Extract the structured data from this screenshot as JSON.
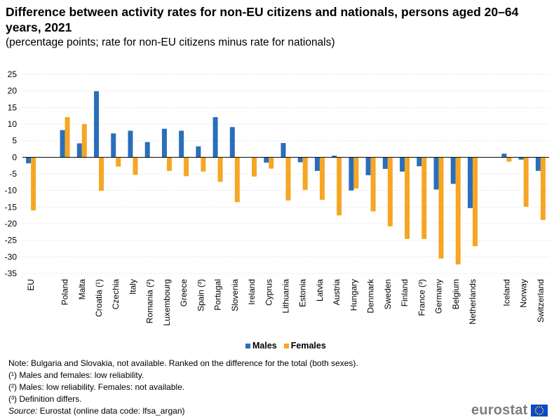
{
  "chart_data": {
    "type": "bar",
    "title": "Difference between activity rates for non-EU citizens and nationals, persons aged 20–64 years, 2021",
    "subtitle": "(percentage points; rate for non-EU citizens minus rate for nationals)",
    "categories": [
      "EU",
      "Poland",
      "Malta",
      "Croatia (¹)",
      "Czechia",
      "Italy",
      "Romania (²)",
      "Luxembourg",
      "Greece",
      "Spain (³)",
      "Portugal",
      "Slovenia",
      "Ireland",
      "Cyprus",
      "Lithuania",
      "Estonia",
      "Latvia",
      "Austria",
      "Hungary",
      "Denmark",
      "Sweden",
      "Finland",
      "France (³)",
      "Germany",
      "Belgium",
      "Netherlands",
      "Iceland",
      "Norway",
      "Switzerland"
    ],
    "series": [
      {
        "name": "Males",
        "color": "#2a6ebb",
        "values": [
          -1.8,
          8.2,
          4.2,
          19.9,
          7.2,
          8.0,
          4.6,
          8.6,
          8.0,
          3.3,
          12.1,
          9.1,
          null,
          -1.6,
          4.3,
          -1.5,
          -4.1,
          0.5,
          -10.0,
          -5.4,
          -3.5,
          -4.3,
          -2.7,
          -9.7,
          -8.0,
          -15.3,
          1.1,
          -0.7,
          -4.1
        ]
      },
      {
        "name": "Females",
        "color": "#f6a623",
        "values": [
          -16.0,
          12.1,
          10.0,
          -10.1,
          -2.8,
          -5.3,
          null,
          -4.1,
          -5.7,
          -4.3,
          -7.4,
          -13.5,
          -5.8,
          -3.4,
          -13.0,
          -9.8,
          -12.8,
          -17.5,
          -9.4,
          -16.3,
          -20.8,
          -24.6,
          -24.6,
          -30.5,
          -32.3,
          -26.8,
          -1.3,
          -14.9,
          -18.9
        ]
      }
    ],
    "ylim": [
      -35,
      25
    ],
    "yticks": [
      25,
      20,
      15,
      10,
      5,
      0,
      -5,
      -10,
      -15,
      -20,
      -25,
      -30,
      -35
    ],
    "grid": true,
    "legend_position": "bottom-center",
    "xlabel": "",
    "ylabel": ""
  },
  "legend": {
    "males": "Males",
    "females": "Females"
  },
  "notes": {
    "note": "Note: Bulgaria and Slovakia, not available. Ranked on the difference for the total (both sexes).",
    "fn1": "(¹) Males and females: low reliability.",
    "fn2": "(²) Males: low reliability. Females: not available.",
    "fn3": "(³) Definition differs.",
    "source_label": "Source:",
    "source_text": " Eurostat (online data code: lfsa_argan)"
  },
  "logo": {
    "text": "eurostat"
  },
  "colors": {
    "males": "#2a6ebb",
    "females": "#f6a623",
    "grid": "#d9d9d9"
  }
}
